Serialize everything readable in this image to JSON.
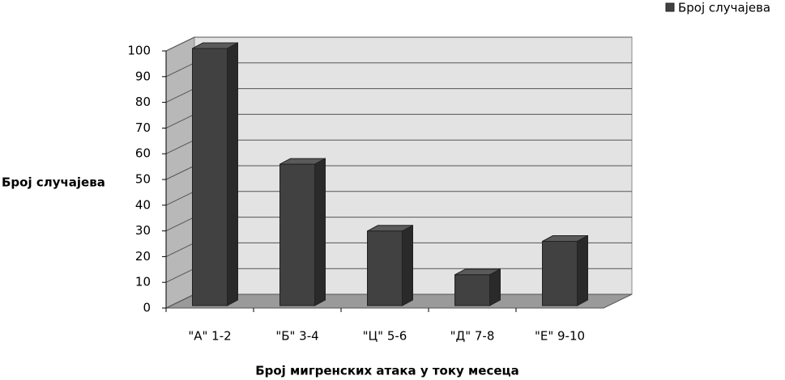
{
  "chart_data": {
    "type": "bar3d",
    "y_label": "Број случајева",
    "x_label": "Број мигренских атака у току месеца",
    "categories": [
      "\"А\" 1-2",
      "\"Б\" 3-4",
      "\"Ц\" 5-6",
      "\"Д\" 7-8",
      "\"Е\" 9-10"
    ],
    "series": [
      {
        "name": "Број случајева",
        "color": "#414141",
        "values": [
          100,
          55,
          29,
          12,
          25
        ]
      }
    ],
    "ylim": [
      0,
      100
    ],
    "yticks": [
      0,
      10,
      20,
      30,
      40,
      50,
      60,
      70,
      80,
      90,
      100
    ],
    "grid": true,
    "legend": "top-right"
  }
}
